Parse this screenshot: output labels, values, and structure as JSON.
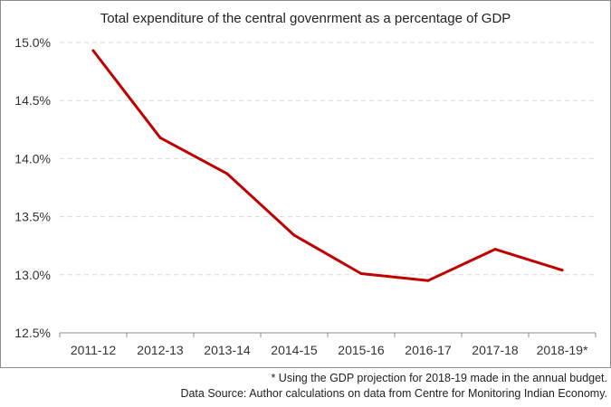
{
  "chart_data": {
    "type": "line",
    "title": "Total expenditure of the central govenrment as a percentage of GDP",
    "xlabel": "",
    "ylabel": "",
    "categories": [
      "2011-12",
      "2012-13",
      "2013-14",
      "2014-15",
      "2015-16",
      "2016-17",
      "2017-18",
      "2018-19*"
    ],
    "series": [
      {
        "values": [
          14.93,
          14.18,
          13.87,
          13.34,
          13.01,
          12.95,
          13.22,
          13.04
        ]
      }
    ],
    "ylim": [
      12.5,
      15.0
    ],
    "yticks": [
      12.5,
      13.0,
      13.5,
      14.0,
      14.5,
      15.0
    ],
    "ytick_labels": [
      "12.5%",
      "13.0%",
      "13.5%",
      "14.0%",
      "14.5%",
      "15.0%"
    ],
    "grid": "horizontal-dashed",
    "line_color": "#c00000",
    "grid_color": "#d9d9d9",
    "axis_color": "#8c8c8c"
  },
  "notes": {
    "footnote": "* Using the GDP projection for 2018-19 made in the annual budget.",
    "source": "Data Source: Author calculations on data from Centre for Monitoring Indian Economy."
  }
}
